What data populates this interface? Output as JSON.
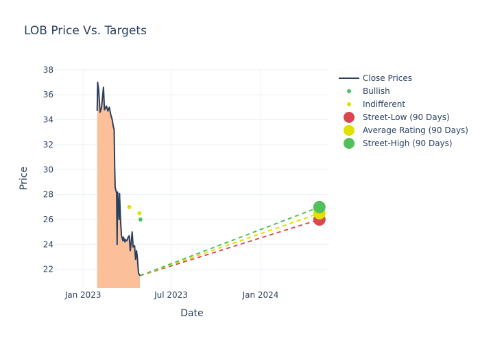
{
  "chart_data": {
    "type": "line",
    "title": "LOB Price Vs. Targets",
    "xlabel": "Date",
    "ylabel": "Price",
    "x_ticks": [
      {
        "date": "2023-01-01",
        "label": "Jan 2023"
      },
      {
        "date": "2023-07-01",
        "label": "Jul 2023"
      },
      {
        "date": "2024-01-01",
        "label": "Jan 2024"
      }
    ],
    "xlim": [
      "2022-11-04",
      "2024-05-21"
    ],
    "y_ticks": [
      22,
      24,
      26,
      28,
      30,
      32,
      34,
      36,
      38
    ],
    "ylim": [
      20.5,
      38.1
    ],
    "grid": true,
    "legend_position": "right",
    "colors": {
      "close": "#2a3f5f",
      "fill": "#fbc09a",
      "bullish": "#52c05a",
      "indifferent": "#e2e000",
      "street_low": "#d8484e",
      "average": "#e2e000",
      "street_high": "#52c05a",
      "grid": "#ebf0f8"
    },
    "series": [
      {
        "name": "Close Prices",
        "kind": "line-area",
        "points": [
          [
            "2023-01-30",
            34.7
          ],
          [
            "2023-01-31",
            37.0
          ],
          [
            "2023-02-02",
            36.4
          ],
          [
            "2023-02-05",
            34.6
          ],
          [
            "2023-02-08",
            35.0
          ],
          [
            "2023-02-12",
            36.6
          ],
          [
            "2023-02-14",
            34.8
          ],
          [
            "2023-02-18",
            35.1
          ],
          [
            "2023-02-21",
            34.7
          ],
          [
            "2023-02-24",
            35.0
          ],
          [
            "2023-02-27",
            34.4
          ],
          [
            "2023-03-02",
            34.0
          ],
          [
            "2023-03-04",
            33.5
          ],
          [
            "2023-03-06",
            33.2
          ],
          [
            "2023-03-07",
            30.3
          ],
          [
            "2023-03-08",
            28.6
          ],
          [
            "2023-03-11",
            28.1
          ],
          [
            "2023-03-12",
            24.0
          ],
          [
            "2023-03-13",
            28.2
          ],
          [
            "2023-03-16",
            26.0
          ],
          [
            "2023-03-17",
            28.1
          ],
          [
            "2023-03-19",
            26.0
          ],
          [
            "2023-03-21",
            24.7
          ],
          [
            "2023-03-24",
            24.3
          ],
          [
            "2023-03-25",
            24.6
          ],
          [
            "2023-03-28",
            24.2
          ],
          [
            "2023-03-29",
            24.4
          ],
          [
            "2023-04-01",
            24.3
          ],
          [
            "2023-04-04",
            24.6
          ],
          [
            "2023-04-06",
            24.7
          ],
          [
            "2023-04-08",
            23.5
          ],
          [
            "2023-04-09",
            23.8
          ],
          [
            "2023-04-12",
            25.0
          ],
          [
            "2023-04-14",
            23.8
          ],
          [
            "2023-04-17",
            23.9
          ],
          [
            "2023-04-19",
            22.8
          ],
          [
            "2023-04-21",
            23.5
          ],
          [
            "2023-04-23",
            22.8
          ],
          [
            "2023-04-25",
            21.7
          ],
          [
            "2023-04-28",
            21.5
          ]
        ]
      },
      {
        "name": "Bullish",
        "kind": "scatter",
        "points": [
          [
            "2023-04-29",
            26.0
          ]
        ]
      },
      {
        "name": "Indifferent",
        "kind": "scatter",
        "points": [
          [
            "2023-04-06",
            27.0
          ],
          [
            "2023-04-27",
            26.5
          ]
        ]
      },
      {
        "name": "Street-Low (90 Days)",
        "kind": "target",
        "from": [
          "2023-04-28",
          21.5
        ],
        "to": [
          "2024-05-01",
          26.0
        ]
      },
      {
        "name": "Average Rating (90 Days)",
        "kind": "target",
        "from": [
          "2023-04-28",
          21.5
        ],
        "to": [
          "2024-05-01",
          26.5
        ]
      },
      {
        "name": "Street-High (90 Days)",
        "kind": "target",
        "from": [
          "2023-04-28",
          21.5
        ],
        "to": [
          "2024-05-01",
          27.0
        ]
      }
    ],
    "legend": [
      {
        "label": "Close Prices",
        "symbol": "line",
        "color_key": "close"
      },
      {
        "label": "Bullish",
        "symbol": "small-dot",
        "color_key": "bullish"
      },
      {
        "label": "Indifferent",
        "symbol": "small-dot",
        "color_key": "indifferent"
      },
      {
        "label": "Street-Low (90 Days)",
        "symbol": "big-dot",
        "color_key": "street_low"
      },
      {
        "label": "Average Rating (90 Days)",
        "symbol": "big-dot",
        "color_key": "average"
      },
      {
        "label": "Street-High (90 Days)",
        "symbol": "big-dot",
        "color_key": "street_high"
      }
    ]
  }
}
